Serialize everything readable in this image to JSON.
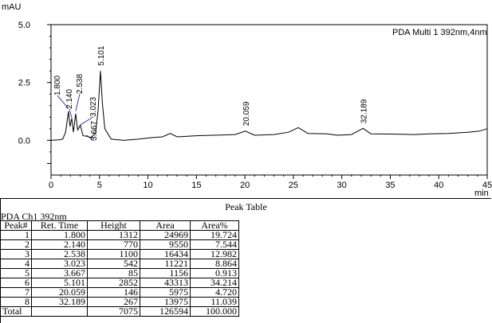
{
  "chart_data": {
    "type": "line",
    "ylabel": "mAU",
    "xlabel": "min",
    "legend": "PDA Multi 1 392nm,4nm",
    "xlim": [
      0,
      45
    ],
    "ylim": [
      -1.5,
      5.0
    ],
    "x_ticks": [
      0,
      5,
      10,
      15,
      20,
      25,
      30,
      35,
      40,
      45
    ],
    "y_ticks": [
      {
        "value": 5.0,
        "label": "5.0"
      },
      {
        "value": 2.5,
        "label": "2.5"
      },
      {
        "value": 0.0,
        "label": "0.0"
      },
      {
        "value": -1.0,
        "label": ""
      }
    ],
    "peaks": [
      {
        "label": "1.800",
        "time": 1.8,
        "height": 1.3
      },
      {
        "label": "2.140",
        "time": 2.14,
        "height": 0.9
      },
      {
        "label": "2.538",
        "time": 2.538,
        "height": 1.2
      },
      {
        "label": "3.023",
        "time": 3.023,
        "height": 0.6
      },
      {
        "label": "3.667",
        "time": 3.667,
        "height": 0.15
      },
      {
        "label": "5.101",
        "time": 5.101,
        "height": 2.95
      },
      {
        "label": "20.059",
        "time": 20.059,
        "height": 0.35
      },
      {
        "label": "32.189",
        "time": 32.189,
        "height": 0.45
      }
    ],
    "trace_points": [
      [
        0.0,
        0.0
      ],
      [
        0.8,
        0.02
      ],
      [
        1.2,
        0.05
      ],
      [
        1.5,
        0.35
      ],
      [
        1.8,
        1.25
      ],
      [
        1.95,
        0.6
      ],
      [
        2.14,
        0.95
      ],
      [
        2.3,
        0.35
      ],
      [
        2.538,
        1.15
      ],
      [
        2.75,
        0.45
      ],
      [
        3.023,
        0.65
      ],
      [
        3.3,
        0.2
      ],
      [
        3.667,
        0.18
      ],
      [
        4.1,
        0.12
      ],
      [
        4.6,
        0.3
      ],
      [
        4.85,
        1.3
      ],
      [
        5.101,
        3.0
      ],
      [
        5.3,
        1.6
      ],
      [
        5.55,
        0.5
      ],
      [
        6.2,
        0.05
      ],
      [
        7.5,
        0.0
      ],
      [
        9.0,
        0.05
      ],
      [
        10.5,
        0.12
      ],
      [
        11.5,
        0.15
      ],
      [
        12.3,
        0.3
      ],
      [
        13.0,
        0.15
      ],
      [
        15.0,
        0.2
      ],
      [
        17.5,
        0.23
      ],
      [
        19.0,
        0.25
      ],
      [
        20.059,
        0.4
      ],
      [
        21.0,
        0.22
      ],
      [
        23.0,
        0.25
      ],
      [
        24.5,
        0.35
      ],
      [
        25.5,
        0.55
      ],
      [
        26.5,
        0.3
      ],
      [
        28.5,
        0.28
      ],
      [
        29.5,
        0.22
      ],
      [
        31.0,
        0.25
      ],
      [
        32.189,
        0.52
      ],
      [
        33.0,
        0.28
      ],
      [
        35.0,
        0.27
      ],
      [
        37.5,
        0.25
      ],
      [
        39.0,
        0.28
      ],
      [
        41.0,
        0.3
      ],
      [
        43.0,
        0.35
      ],
      [
        44.2,
        0.4
      ],
      [
        45.0,
        0.5
      ]
    ]
  },
  "peak_table": {
    "title": "Peak Table",
    "subtitle": "PDA Ch1 392nm",
    "headers": [
      "Peak#",
      "Ret. Time",
      "Height",
      "Area",
      "Area%"
    ],
    "rows": [
      [
        "1",
        "1.800",
        "1312",
        "24969",
        "19.724"
      ],
      [
        "2",
        "2.140",
        "770",
        "9550",
        "7.544"
      ],
      [
        "3",
        "2.538",
        "1100",
        "16434",
        "12.982"
      ],
      [
        "4",
        "3.023",
        "542",
        "11221",
        "8.864"
      ],
      [
        "5",
        "3.667",
        "85",
        "1156",
        "0.913"
      ],
      [
        "6",
        "5.101",
        "2852",
        "43313",
        "34.214"
      ],
      [
        "7",
        "20.059",
        "146",
        "5975",
        "4.720"
      ],
      [
        "8",
        "32.189",
        "267",
        "13975",
        "11.039"
      ]
    ],
    "total": [
      "Total",
      "",
      "7075",
      "126594",
      "100.000"
    ]
  },
  "colors": {
    "trace": "#000000",
    "axis": "#000000",
    "label_line": "#3a3aa8"
  }
}
